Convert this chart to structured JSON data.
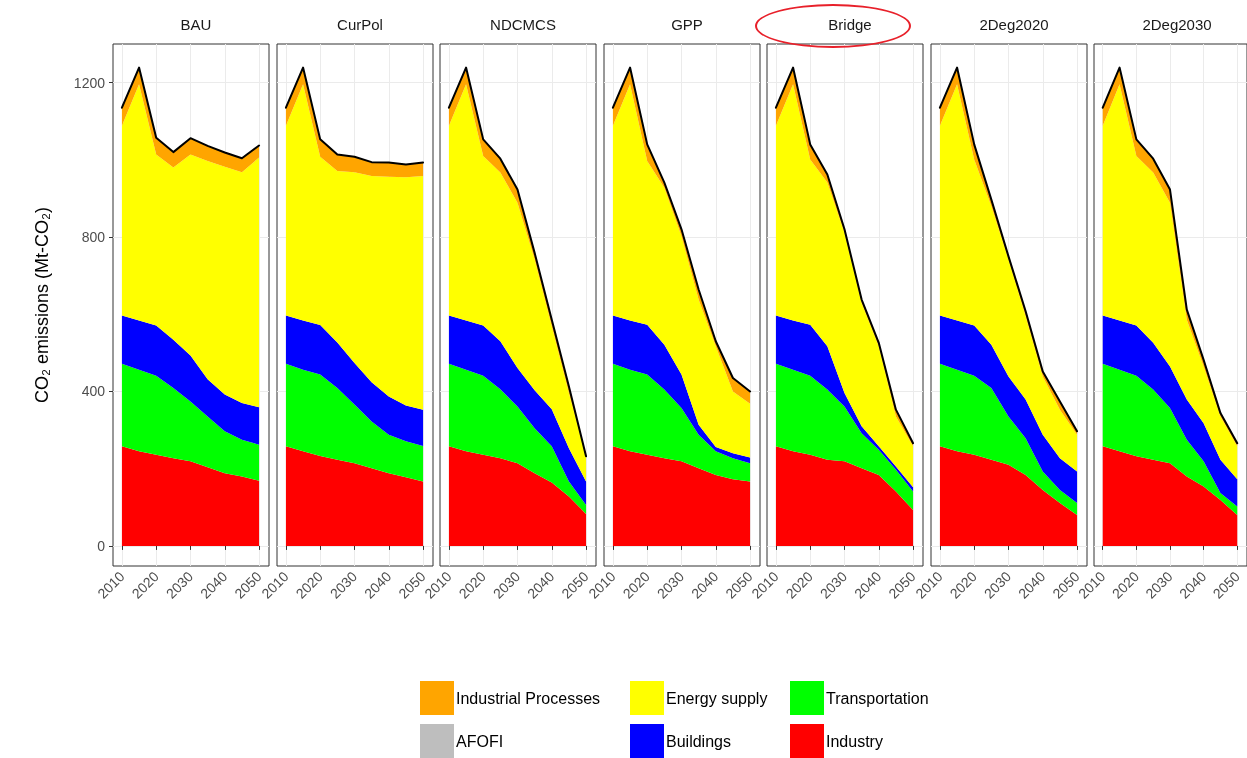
{
  "chart_data": [
    {
      "type": "area",
      "stacked": true,
      "title": "BAU",
      "ylabel": "CO₂ emissions (Mt-CO₂)",
      "x": [
        2010,
        2015,
        2020,
        2025,
        2030,
        2035,
        2040,
        2045,
        2050
      ],
      "xlim": [
        2007.4,
        2052.9
      ],
      "xticks": [
        2010,
        2020,
        2030,
        2040,
        2050
      ],
      "ylim": [
        -52,
        1300
      ],
      "yticks": [
        0,
        400,
        800,
        1200
      ],
      "grid": true,
      "legend": "bottom",
      "series": [
        {
          "name": "Industry",
          "color": "#ff0000",
          "values": [
            258,
            245,
            236,
            227,
            219,
            204,
            188,
            180,
            169
          ]
        },
        {
          "name": "Transportation",
          "color": "#00ff00",
          "values": [
            214,
            211,
            205,
            182,
            155,
            131,
            109,
            95,
            93
          ]
        },
        {
          "name": "Buildings",
          "color": "#0000ff",
          "values": [
            125,
            128,
            130,
            125,
            119,
            97,
            95,
            95,
            97
          ]
        },
        {
          "name": "Energy supply",
          "color": "#ffff00",
          "values": [
            491,
            612,
            443,
            446,
            521,
            565,
            590,
            598,
            647
          ]
        },
        {
          "name": "AFOFI",
          "color": "#bebebe",
          "values": [
            null,
            null,
            null,
            null,
            null,
            null,
            null,
            null,
            null
          ]
        },
        {
          "name": "Industrial Processes",
          "color": "#ffa500",
          "values": [
            47,
            43,
            43,
            40,
            42,
            39,
            37,
            36,
            31
          ]
        }
      ]
    },
    {
      "type": "area",
      "stacked": true,
      "title": "CurPol",
      "x": [
        2010,
        2015,
        2020,
        2025,
        2030,
        2035,
        2040,
        2045,
        2050
      ],
      "xlim": [
        2007.4,
        2052.9
      ],
      "xticks": [
        2010,
        2020,
        2030,
        2040,
        2050
      ],
      "ylim": [
        -52,
        1300
      ],
      "yticks": [
        0,
        400,
        800,
        1200
      ],
      "grid": true,
      "tick_labels": "x",
      "series": [
        {
          "color": "#ff0000",
          "values": [
            258,
            245,
            233,
            223,
            214,
            201,
            188,
            178,
            167
          ]
        },
        {
          "color": "#00ff00",
          "values": [
            214,
            211,
            211,
            186,
            152,
            121,
            100,
            93,
            92
          ]
        },
        {
          "color": "#0000ff",
          "values": [
            125,
            128,
            128,
            118,
            108,
            102,
            99,
            93,
            94
          ]
        },
        {
          "color": "#ffff00",
          "values": [
            491,
            612,
            436,
            444,
            494,
            534,
            569,
            591,
            605
          ]
        },
        {
          "color": "#bebebe",
          "values": [
            null,
            null,
            null,
            null,
            null,
            null,
            null,
            null,
            null
          ]
        },
        {
          "color": "#ffa500",
          "values": [
            47,
            43,
            45,
            43,
            40,
            36,
            37,
            33,
            35
          ]
        }
      ]
    },
    {
      "type": "area",
      "stacked": true,
      "title": "NDCMCS",
      "x": [
        2010,
        2015,
        2020,
        2025,
        2030,
        2035,
        2040,
        2045,
        2050
      ],
      "xlim": [
        2007.4,
        2052.9
      ],
      "xticks": [
        2010,
        2020,
        2030,
        2040,
        2050
      ],
      "ylim": [
        -52,
        1300
      ],
      "yticks": [
        0,
        400,
        800,
        1200
      ],
      "grid": true,
      "tick_labels": "x",
      "series": [
        {
          "color": "#ff0000",
          "values": [
            258,
            245,
            236,
            227,
            214,
            188,
            164,
            128,
            83
          ]
        },
        {
          "color": "#00ff00",
          "values": [
            214,
            211,
            205,
            179,
            147,
            117,
            94,
            39,
            23
          ]
        },
        {
          "color": "#0000ff",
          "values": [
            125,
            128,
            130,
            124,
            100,
            98,
            96,
            86,
            61
          ]
        },
        {
          "color": "#ffff00",
          "values": [
            491,
            612,
            439,
            437,
            428,
            339,
            215,
            143,
            65
          ]
        },
        {
          "color": "#bebebe",
          "values": [
            null,
            null,
            null,
            null,
            null,
            null,
            null,
            null,
            null
          ]
        },
        {
          "color": "#ffa500",
          "values": [
            47,
            43,
            43,
            36,
            34,
            17,
            17,
            17,
            0
          ]
        }
      ]
    },
    {
      "type": "area",
      "stacked": true,
      "title": "GPP",
      "x": [
        2010,
        2015,
        2020,
        2025,
        2030,
        2035,
        2040,
        2045,
        2050
      ],
      "xlim": [
        2007.4,
        2052.9
      ],
      "xticks": [
        2010,
        2020,
        2030,
        2040,
        2050
      ],
      "ylim": [
        -52,
        1300
      ],
      "yticks": [
        0,
        400,
        800,
        1200
      ],
      "grid": true,
      "tick_labels": "x",
      "series": [
        {
          "color": "#ff0000",
          "values": [
            258,
            245,
            236,
            227,
            219,
            201,
            184,
            173,
            167
          ]
        },
        {
          "color": "#00ff00",
          "values": [
            214,
            211,
            208,
            178,
            138,
            87,
            61,
            54,
            47
          ]
        },
        {
          "color": "#0000ff",
          "values": [
            125,
            128,
            129,
            116,
            87,
            26,
            11,
            13,
            15
          ]
        },
        {
          "color": "#ffff00",
          "values": [
            491,
            612,
            424,
            407,
            358,
            324,
            261,
            160,
            139
          ]
        },
        {
          "color": "#bebebe",
          "values": [
            null,
            null,
            null,
            null,
            null,
            null,
            null,
            null,
            null
          ]
        },
        {
          "color": "#ffa500",
          "values": [
            47,
            43,
            43,
            13,
            18,
            26,
            13,
            35,
            32
          ]
        }
      ]
    },
    {
      "type": "area",
      "stacked": true,
      "title": "Bridge",
      "x": [
        2010,
        2015,
        2020,
        2025,
        2030,
        2035,
        2040,
        2045,
        2050
      ],
      "xlim": [
        2007.4,
        2052.9
      ],
      "xticks": [
        2010,
        2020,
        2030,
        2040,
        2050
      ],
      "ylim": [
        -52,
        1300
      ],
      "yticks": [
        0,
        400,
        800,
        1200
      ],
      "grid": true,
      "tick_labels": "x",
      "series": [
        {
          "color": "#ff0000",
          "values": [
            258,
            245,
            236,
            223,
            219,
            201,
            184,
            141,
            93
          ]
        },
        {
          "color": "#00ff00",
          "values": [
            214,
            211,
            205,
            182,
            142,
            91,
            65,
            56,
            48
          ]
        },
        {
          "color": "#0000ff",
          "values": [
            125,
            128,
            132,
            112,
            35,
            18,
            9,
            9,
            11
          ]
        },
        {
          "color": "#ffff00",
          "values": [
            491,
            612,
            428,
            424,
            415,
            319,
            259,
            129,
            106
          ]
        },
        {
          "color": "#bebebe",
          "values": [
            null,
            null,
            null,
            null,
            null,
            null,
            null,
            null,
            null
          ]
        },
        {
          "color": "#ffa500",
          "values": [
            47,
            43,
            39,
            21,
            9,
            9,
            9,
            18,
            8
          ]
        }
      ]
    },
    {
      "type": "area",
      "stacked": true,
      "title": "2Deg2020",
      "x": [
        2010,
        2015,
        2020,
        2025,
        2030,
        2035,
        2040,
        2045,
        2050
      ],
      "xlim": [
        2007.4,
        2052.9
      ],
      "xticks": [
        2010,
        2020,
        2030,
        2040,
        2050
      ],
      "ylim": [
        -52,
        1300
      ],
      "yticks": [
        0,
        400,
        800,
        1200
      ],
      "grid": true,
      "tick_labels": "x",
      "series": [
        {
          "color": "#ff0000",
          "values": [
            258,
            245,
            236,
            223,
            210,
            184,
            145,
            111,
            80
          ]
        },
        {
          "color": "#00ff00",
          "values": [
            214,
            211,
            205,
            186,
            125,
            95,
            48,
            34,
            31
          ]
        },
        {
          "color": "#0000ff",
          "values": [
            125,
            128,
            130,
            112,
            104,
            100,
            95,
            82,
            82
          ]
        },
        {
          "color": "#ffff00",
          "values": [
            491,
            612,
            430,
            359,
            303,
            216,
            151,
            126,
            95
          ]
        },
        {
          "color": "#bebebe",
          "values": [
            null,
            null,
            null,
            null,
            null,
            null,
            null,
            null,
            null
          ]
        },
        {
          "color": "#ffa500",
          "values": [
            47,
            43,
            39,
            17,
            8,
            13,
            13,
            21,
            9
          ]
        }
      ]
    },
    {
      "type": "area",
      "stacked": true,
      "title": "2Deg2030",
      "x": [
        2010,
        2015,
        2020,
        2025,
        2030,
        2035,
        2040,
        2045,
        2050
      ],
      "xlim": [
        2007.4,
        2052.9
      ],
      "xticks": [
        2010,
        2020,
        2030,
        2040,
        2050
      ],
      "ylim": [
        -52,
        1300
      ],
      "yticks": [
        0,
        400,
        800,
        1200
      ],
      "grid": true,
      "tick_labels": "x",
      "series": [
        {
          "color": "#ff0000",
          "values": [
            258,
            245,
            232,
            223,
            214,
            180,
            154,
            119,
            80
          ]
        },
        {
          "color": "#00ff00",
          "values": [
            214,
            211,
            209,
            182,
            143,
            95,
            65,
            18,
            22
          ]
        },
        {
          "color": "#0000ff",
          "values": [
            125,
            128,
            130,
            121,
            108,
            104,
            99,
            86,
            71
          ]
        },
        {
          "color": "#ffff00",
          "values": [
            491,
            612,
            439,
            441,
            424,
            207,
            147,
            112,
            85
          ]
        },
        {
          "color": "#bebebe",
          "values": [
            null,
            null,
            null,
            null,
            null,
            null,
            null,
            null,
            null
          ]
        },
        {
          "color": "#ffa500",
          "values": [
            47,
            43,
            43,
            36,
            34,
            26,
            17,
            9,
            8
          ]
        }
      ]
    }
  ]
}
